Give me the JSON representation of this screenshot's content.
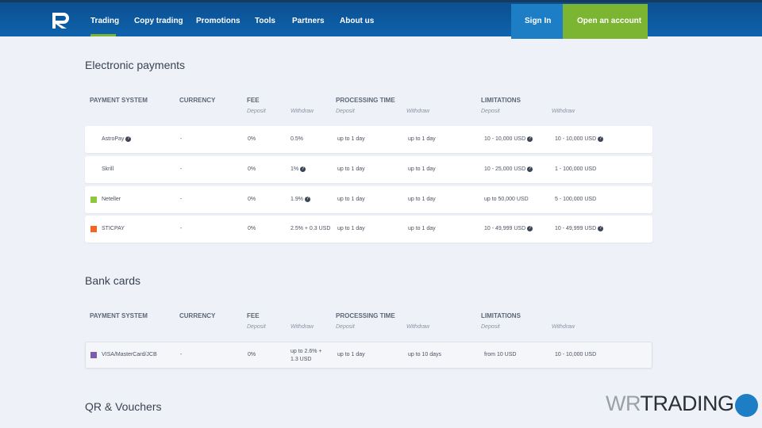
{
  "nav": {
    "items": [
      "Trading",
      "Copy trading",
      "Promotions",
      "Tools",
      "Partners",
      "About us"
    ],
    "sign_in": "Sign In",
    "open_account": "Open an account"
  },
  "columns": [
    "PAYMENT SYSTEM",
    "CURRENCY",
    "FEE",
    "PROCESSING TIME",
    "LIMITATIONS"
  ],
  "subcolumns": [
    "Deposit",
    "Withdraw",
    "Deposit",
    "Withdraw",
    "Deposit",
    "Withdraw"
  ],
  "sections": [
    {
      "title": "Electronic payments",
      "rows": [
        [
          "AstroPay",
          "-",
          "0%",
          "0.5%",
          "up to 1 day",
          "up to 1 day",
          "10 - 10,000 USD",
          "10 - 10,000 USD"
        ],
        [
          "Skrill",
          "-",
          "0%",
          "1%",
          "up to 1 day",
          "up to 1 day",
          "10 - 25,000 USD",
          "1 - 100,000 USD"
        ],
        [
          "Neteller",
          "-",
          "0%",
          "1.9%",
          "up to 1 day",
          "up to 1 day",
          "up to 50,000 USD",
          "5 - 100,000 USD"
        ],
        [
          "STICPAY",
          "-",
          "0%",
          "2.5% + 0.3 USD",
          "up to 1 day",
          "up to 1 day",
          "10 - 49,999 USD",
          "10 - 49,999 USD"
        ]
      ],
      "info_icons": [
        [
          0,
          6,
          7
        ],
        [
          3,
          6
        ],
        [
          3
        ],
        [
          6,
          7
        ]
      ]
    },
    {
      "title": "Bank cards",
      "rows": [
        [
          "VISA/MasterCard/JCB",
          "-",
          "0%",
          "up to 2.6% + 1.3 USD",
          "up to 1 day",
          "up to 10 days",
          "from 10 USD",
          "10 - 10,000 USD"
        ]
      ],
      "info_icons": [
        []
      ]
    },
    {
      "title": "QR & Vouchers",
      "rows": [],
      "info_icons": []
    }
  ],
  "watermark": [
    "WR",
    "TRADING"
  ]
}
